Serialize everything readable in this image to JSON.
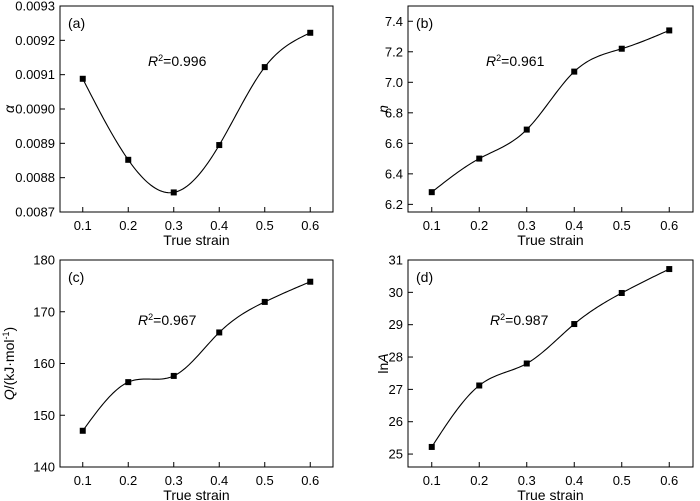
{
  "chart_data": [
    {
      "type": "scatter",
      "panel": "(a)",
      "xlabel": "True strain",
      "ylabel": "α",
      "xlim": [
        0.05,
        0.65
      ],
      "ylim": [
        0.0087,
        0.0093
      ],
      "xticks": [
        "0.1",
        "0.2",
        "0.3",
        "0.4",
        "0.5",
        "0.6"
      ],
      "yticks": [
        "0.0087",
        "0.0088",
        "0.0089",
        "0.0090",
        "0.0091",
        "0.0092",
        "0.0093"
      ],
      "annotation": {
        "prefix": "R",
        "sup": "2",
        "suffix": "=0.996"
      },
      "fit": "smooth curve",
      "x": [
        0.1,
        0.2,
        0.3,
        0.4,
        0.5,
        0.6
      ],
      "y": [
        0.009088,
        0.008852,
        0.008757,
        0.008895,
        0.009122,
        0.009222
      ]
    },
    {
      "type": "scatter",
      "panel": "(b)",
      "xlabel": "True strain",
      "ylabel": "n",
      "xlim": [
        0.05,
        0.65
      ],
      "ylim": [
        6.15,
        7.5
      ],
      "xticks": [
        "0.1",
        "0.2",
        "0.3",
        "0.4",
        "0.5",
        "0.6"
      ],
      "yticks": [
        "6.2",
        "6.4",
        "6.6",
        "6.8",
        "7.0",
        "7.2",
        "7.4"
      ],
      "annotation": {
        "prefix": "R",
        "sup": "2",
        "suffix": "=0.961"
      },
      "fit": "smooth curve",
      "x": [
        0.1,
        0.2,
        0.3,
        0.4,
        0.5,
        0.6
      ],
      "y": [
        6.28,
        6.5,
        6.69,
        7.07,
        7.22,
        7.34
      ]
    },
    {
      "type": "scatter",
      "panel": "(c)",
      "xlabel": "True strain",
      "ylabel_prefix": "Q",
      "ylabel_main": "/(kJ·mol",
      "ylabel_sup": "-1",
      "ylabel_close": ")",
      "xlim": [
        0.05,
        0.65
      ],
      "ylim": [
        140,
        180
      ],
      "xticks": [
        "0.1",
        "0.2",
        "0.3",
        "0.4",
        "0.5",
        "0.6"
      ],
      "yticks": [
        "140",
        "150",
        "160",
        "170",
        "180"
      ],
      "annotation": {
        "prefix": "R",
        "sup": "2",
        "suffix": "=0.967"
      },
      "fit": "smooth curve",
      "x": [
        0.1,
        0.2,
        0.3,
        0.4,
        0.5,
        0.6
      ],
      "y": [
        147.0,
        156.4,
        157.6,
        166.0,
        171.9,
        175.8
      ]
    },
    {
      "type": "scatter",
      "panel": "(d)",
      "xlabel": "True strain",
      "ylabel_main": "ln",
      "ylabel_italic": "A",
      "xlim": [
        0.05,
        0.65
      ],
      "ylim": [
        24.6,
        31.0
      ],
      "xticks": [
        "0.1",
        "0.2",
        "0.3",
        "0.4",
        "0.5",
        "0.6"
      ],
      "yticks": [
        "25",
        "26",
        "27",
        "28",
        "29",
        "30",
        "31"
      ],
      "annotation": {
        "prefix": "R",
        "sup": "2",
        "suffix": "=0.987"
      },
      "fit": "smooth curve",
      "x": [
        0.1,
        0.2,
        0.3,
        0.4,
        0.5,
        0.6
      ],
      "y": [
        25.22,
        27.12,
        27.8,
        29.02,
        29.98,
        30.72
      ]
    }
  ]
}
